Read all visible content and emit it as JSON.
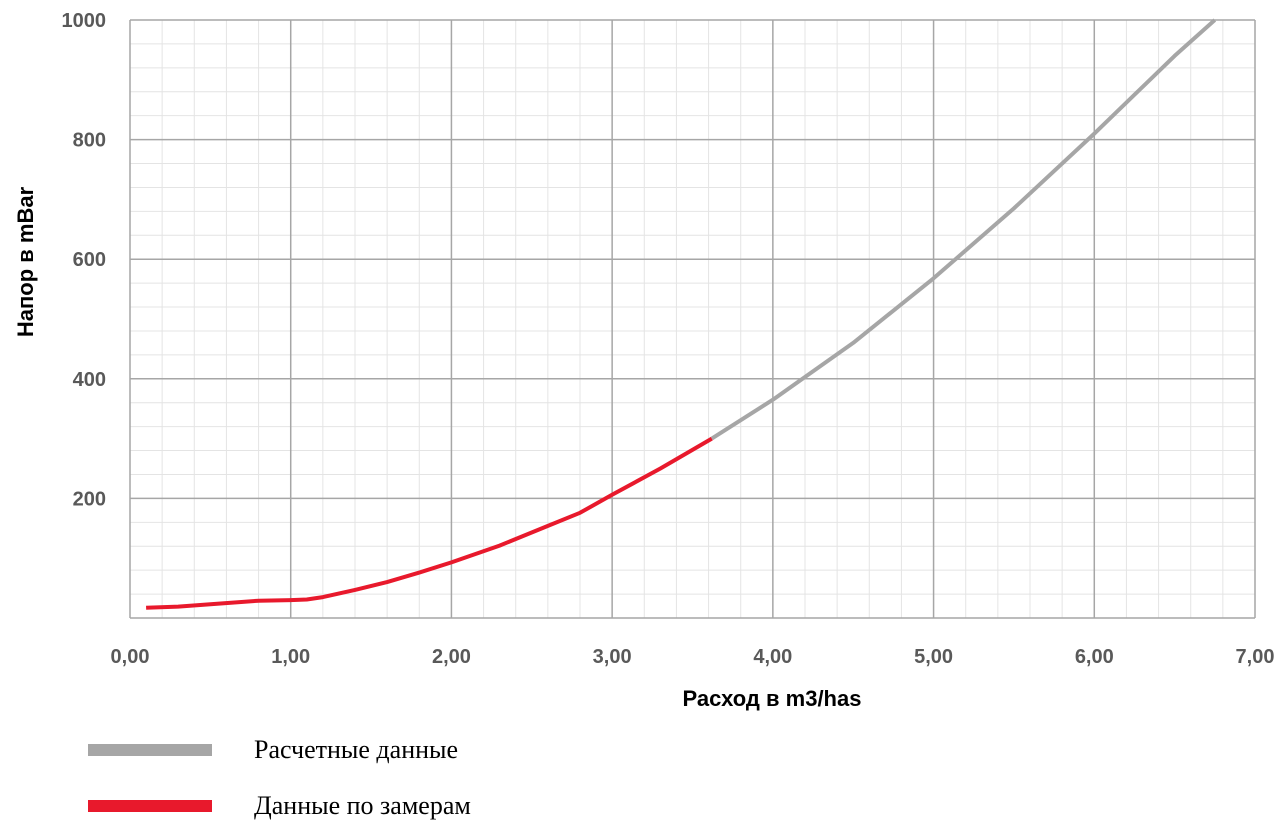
{
  "chart_data": {
    "type": "line",
    "xlabel": "Расход в m3/has",
    "ylabel": "Напор в mBar",
    "xlim": [
      0,
      7
    ],
    "ylim": [
      0,
      1000
    ],
    "x_tick_labels": [
      "0,00",
      "1,00",
      "2,00",
      "3,00",
      "4,00",
      "5,00",
      "6,00",
      "7,00"
    ],
    "y_tick_labels": [
      "200",
      "400",
      "600",
      "800",
      "1000"
    ],
    "grid": true,
    "legend_position": "bottom",
    "series": [
      {
        "name": "Расчетные данные",
        "color": "#a6a6a6",
        "points": [
          [
            3.62,
            300
          ],
          [
            4.0,
            365
          ],
          [
            4.5,
            460
          ],
          [
            5.0,
            568
          ],
          [
            5.5,
            685
          ],
          [
            6.0,
            810
          ],
          [
            6.5,
            940
          ],
          [
            6.75,
            1000
          ]
        ]
      },
      {
        "name": "Данные по замерам",
        "color": "#e8192c",
        "points": [
          [
            0.1,
            17
          ],
          [
            0.3,
            19
          ],
          [
            0.5,
            23
          ],
          [
            0.8,
            29
          ],
          [
            1.0,
            30
          ],
          [
            1.1,
            31
          ],
          [
            1.2,
            35
          ],
          [
            1.4,
            47
          ],
          [
            1.6,
            60
          ],
          [
            1.8,
            76
          ],
          [
            2.0,
            93
          ],
          [
            2.3,
            121
          ],
          [
            2.6,
            154
          ],
          [
            2.8,
            176
          ],
          [
            3.0,
            206
          ],
          [
            3.3,
            250
          ],
          [
            3.62,
            300
          ]
        ]
      }
    ]
  }
}
